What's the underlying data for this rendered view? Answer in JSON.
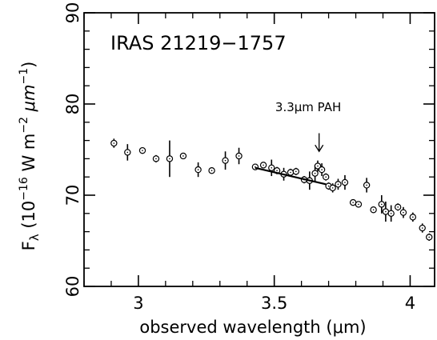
{
  "chart_data": {
    "type": "scatter",
    "title": "IRAS 21219−1757",
    "xlabel": "observed wavelength (μm)",
    "ylabel": "F_λ (10^-16 W m^-2 μm^-1)",
    "ylabel_parts": {
      "symbol": "F",
      "subscript": "λ",
      "open": " (10",
      "exp1": "−16",
      "mid": " W m",
      "exp2": "−2",
      "space": " ",
      "unit": "μm",
      "exp3": "−1",
      "close": ")"
    },
    "xlim": [
      2.8,
      4.09
    ],
    "ylim": [
      60,
      90
    ],
    "x_ticks": [
      {
        "value": 3.0,
        "label": "3"
      },
      {
        "value": 3.5,
        "label": "3.5"
      },
      {
        "value": 4.0,
        "label": "4"
      }
    ],
    "y_ticks": [
      {
        "value": 60,
        "label": "60"
      },
      {
        "value": 70,
        "label": "70"
      },
      {
        "value": 80,
        "label": "80"
      },
      {
        "value": 90,
        "label": "90"
      }
    ],
    "x_minor_step": 0.1,
    "y_minor_step": 2,
    "grid": false,
    "points": [
      {
        "x": 2.91,
        "y": 75.7,
        "err": 0.5
      },
      {
        "x": 2.96,
        "y": 74.7,
        "err": 0.9
      },
      {
        "x": 3.015,
        "y": 74.9,
        "err": 0.35
      },
      {
        "x": 3.065,
        "y": 74.0,
        "err": 0.4
      },
      {
        "x": 3.115,
        "y": 74.0,
        "err": 2.0
      },
      {
        "x": 3.165,
        "y": 74.3,
        "err": 0.35
      },
      {
        "x": 3.22,
        "y": 72.8,
        "err": 0.8
      },
      {
        "x": 3.27,
        "y": 72.7,
        "err": 0.35
      },
      {
        "x": 3.32,
        "y": 73.8,
        "err": 1.0
      },
      {
        "x": 3.37,
        "y": 74.3,
        "err": 0.9
      },
      {
        "x": 3.43,
        "y": 73.1,
        "err": 0.3
      },
      {
        "x": 3.46,
        "y": 73.3,
        "err": 0.3
      },
      {
        "x": 3.49,
        "y": 73.0,
        "err": 0.9
      },
      {
        "x": 3.51,
        "y": 72.7,
        "err": 0.4
      },
      {
        "x": 3.535,
        "y": 72.3,
        "err": 0.7
      },
      {
        "x": 3.56,
        "y": 72.5,
        "err": 0.4
      },
      {
        "x": 3.58,
        "y": 72.6,
        "err": 0.4
      },
      {
        "x": 3.61,
        "y": 71.7,
        "err": 0.4
      },
      {
        "x": 3.63,
        "y": 71.6,
        "err": 1.0
      },
      {
        "x": 3.65,
        "y": 72.4,
        "err": 0.9
      },
      {
        "x": 3.66,
        "y": 73.2,
        "err": 0.6
      },
      {
        "x": 3.675,
        "y": 72.8,
        "err": 0.7
      },
      {
        "x": 3.69,
        "y": 72.0,
        "err": 0.4
      },
      {
        "x": 3.7,
        "y": 71.0,
        "err": 0.4
      },
      {
        "x": 3.715,
        "y": 70.8,
        "err": 0.5
      },
      {
        "x": 3.735,
        "y": 71.2,
        "err": 0.6
      },
      {
        "x": 3.76,
        "y": 71.4,
        "err": 0.8
      },
      {
        "x": 3.79,
        "y": 69.2,
        "err": 0.3
      },
      {
        "x": 3.81,
        "y": 69.0,
        "err": 0.3
      },
      {
        "x": 3.84,
        "y": 71.1,
        "err": 0.8
      },
      {
        "x": 3.865,
        "y": 68.4,
        "err": 0.3
      },
      {
        "x": 3.895,
        "y": 69.0,
        "err": 1.0
      },
      {
        "x": 3.91,
        "y": 68.2,
        "err": 1.1
      },
      {
        "x": 3.93,
        "y": 68.0,
        "err": 0.9
      },
      {
        "x": 3.955,
        "y": 68.7,
        "err": 0.4
      },
      {
        "x": 3.975,
        "y": 68.1,
        "err": 0.6
      },
      {
        "x": 4.01,
        "y": 67.6,
        "err": 0.5
      },
      {
        "x": 4.045,
        "y": 66.4,
        "err": 0.5
      },
      {
        "x": 4.07,
        "y": 65.4,
        "err": 0.4
      }
    ],
    "fit_line": {
      "x": [
        3.43,
        3.69
      ],
      "y": [
        73.0,
        71.2
      ]
    },
    "annotation": {
      "text": "3.3μm PAH",
      "arrow_x": 3.665,
      "arrow_y_top": 76.8,
      "arrow_y_bottom": 74.8,
      "text_x": 3.625,
      "text_y": 79.2
    }
  }
}
